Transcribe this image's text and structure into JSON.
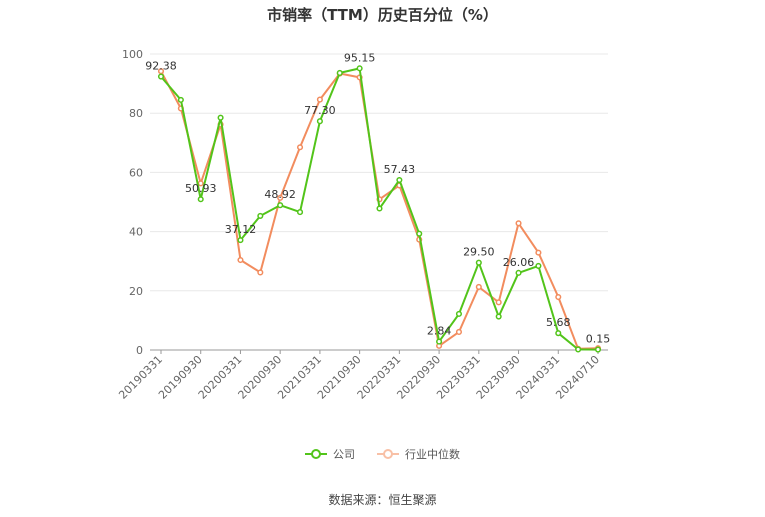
{
  "chart_data": {
    "type": "line",
    "title": "市销率（TTM）历史百分位（%）",
    "ylim": [
      0,
      100
    ],
    "y_ticks": [
      "0",
      "20",
      "40",
      "60",
      "80",
      "100"
    ],
    "x_tick_labels": [
      "20190331",
      "20190930",
      "20200331",
      "20200930",
      "20210331",
      "20210930",
      "20220331",
      "20220930",
      "20230331",
      "20230930",
      "20240331",
      "20240710"
    ],
    "x": [
      "20190331",
      "20190630",
      "20190930",
      "20191231",
      "20200331",
      "20200630",
      "20200930",
      "20201231",
      "20210331",
      "20210630",
      "20210930",
      "20211231",
      "20220331",
      "20220630",
      "20220930",
      "20221231",
      "20230331",
      "20230630",
      "20230930",
      "20231231",
      "20240331",
      "20240630",
      "20240710"
    ],
    "grid": true,
    "legend_position": "bottom",
    "series": [
      {
        "name": "公司",
        "color": "#52c41a",
        "values": [
          92.38,
          84.5,
          50.93,
          78.5,
          37.12,
          45.3,
          48.92,
          46.6,
          77.3,
          93.6,
          95.15,
          47.8,
          57.43,
          39.3,
          2.84,
          12.2,
          29.5,
          11.3,
          26.06,
          28.4,
          5.68,
          0.2,
          0.15
        ]
      },
      {
        "name": "行业中位数",
        "color": "#f28c5e",
        "values": [
          94.2,
          81.6,
          56.3,
          76.2,
          30.4,
          26.2,
          51.4,
          68.5,
          84.6,
          93.4,
          92.1,
          50.9,
          55.6,
          37.3,
          1.4,
          6.1,
          21.3,
          16.1,
          42.8,
          32.9,
          17.9,
          0.4,
          0.6
        ]
      }
    ],
    "data_labels": [
      {
        "index": 0,
        "text": "92.38"
      },
      {
        "index": 2,
        "text": "50.93"
      },
      {
        "index": 4,
        "text": "37.12"
      },
      {
        "index": 6,
        "text": "48.92"
      },
      {
        "index": 8,
        "text": "77.30"
      },
      {
        "index": 10,
        "text": "95.15"
      },
      {
        "index": 12,
        "text": "57.43"
      },
      {
        "index": 14,
        "text": "2.84"
      },
      {
        "index": 16,
        "text": "29.50"
      },
      {
        "index": 18,
        "text": "26.06"
      },
      {
        "index": 20,
        "text": "5.68"
      },
      {
        "index": 22,
        "text": "0.15"
      }
    ]
  },
  "source_text": "数据来源：恒生聚源"
}
